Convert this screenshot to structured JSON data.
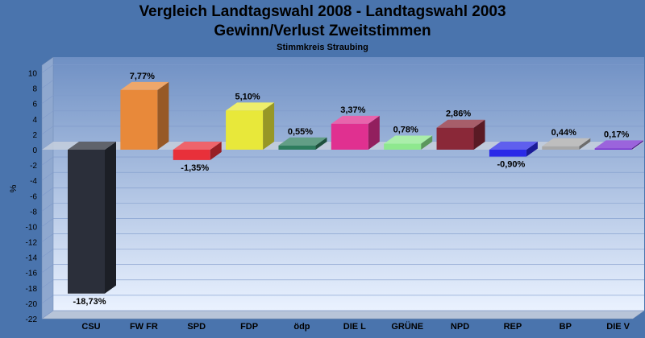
{
  "chart_data": {
    "type": "bar",
    "title": "Vergleich Landtagswahl 2008 - Landtagswahl 2003",
    "subtitle": "Gewinn/Verlust Zweitstimmen",
    "caption": "Stimmkreis Straubing",
    "ylabel": "%",
    "ylim": [
      -22,
      11
    ],
    "yticks": [
      10,
      8,
      6,
      4,
      2,
      0,
      -2,
      -4,
      -6,
      -8,
      -10,
      -12,
      -14,
      -16,
      -18,
      -20,
      -22
    ],
    "grid": true,
    "categories": [
      "CSU",
      "FW FR",
      "SPD",
      "FDP",
      "ödp",
      "DIE L",
      "GRÜNE",
      "NPD",
      "REP",
      "BP",
      "DIE V"
    ],
    "values": [
      -18.73,
      7.77,
      -1.35,
      5.1,
      0.55,
      3.37,
      0.78,
      2.86,
      -0.9,
      0.44,
      0.17
    ],
    "labels": [
      "-18,73%",
      "7,77%",
      "-1,35%",
      "5,10%",
      "0,55%",
      "3,37%",
      "0,78%",
      "2,86%",
      "-0,90%",
      "0,44%",
      "0,17%"
    ],
    "colors": [
      "#2b2f3a",
      "#e8893a",
      "#e8303a",
      "#e8e83a",
      "#2e7d5e",
      "#e03090",
      "#8ee88e",
      "#8a2838",
      "#2a2ae8",
      "#a8a8a8",
      "#7a30d0"
    ]
  }
}
